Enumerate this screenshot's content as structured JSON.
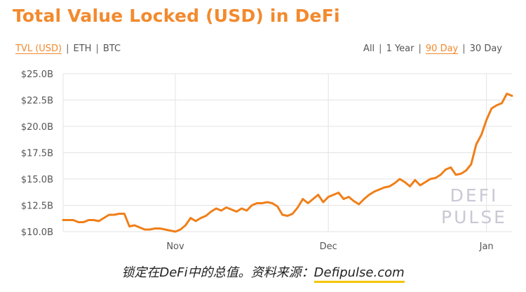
{
  "title": "Total Value Locked (USD) in DeFi",
  "metric_tabs": [
    {
      "label": "TVL (USD)",
      "active": true
    },
    {
      "label": "ETH",
      "active": false
    },
    {
      "label": "BTC",
      "active": false
    }
  ],
  "range_tabs": [
    {
      "label": "All",
      "active": false
    },
    {
      "label": "1 Year",
      "active": false
    },
    {
      "label": "90 Day",
      "active": true
    },
    {
      "label": "30 Day",
      "active": false
    }
  ],
  "separator": "|",
  "watermark": [
    "DEFI",
    "PULSE"
  ],
  "caption": {
    "text": "锁定在DeFi中的总值。资料来源：",
    "source": "Defipulse.com"
  },
  "colors": {
    "accent": "#f28a2e",
    "line": "#f07f19",
    "grid": "#e3e3e3",
    "source_underline": "#f5c400"
  },
  "chart_data": {
    "type": "line",
    "title": "Total Value Locked (USD) in DeFi",
    "xlabel": "",
    "ylabel": "",
    "ylim": [
      10,
      25
    ],
    "y_ticks": [
      10,
      12.5,
      15,
      17.5,
      20,
      22.5,
      25
    ],
    "y_tick_labels": [
      "$10.0B",
      "$12.5B",
      "$15.0B",
      "$17.5B",
      "$20.0B",
      "$22.5B",
      "$25.0B"
    ],
    "x_ticks": [
      {
        "label": "Nov",
        "day": 22
      },
      {
        "label": "Dec",
        "day": 52
      },
      {
        "label": "Jan",
        "day": 83
      }
    ],
    "grid": true,
    "series": [
      {
        "values_billion_usd": [
          11.1,
          11.1,
          11.1,
          10.9,
          10.9,
          11.1,
          11.1,
          11.0,
          11.3,
          11.6,
          11.6,
          11.7,
          11.7,
          10.5,
          10.6,
          10.4,
          10.2,
          10.2,
          10.3,
          10.3,
          10.2,
          10.1,
          10.0,
          10.2,
          10.6,
          11.3,
          11.0,
          11.3,
          11.5,
          11.9,
          12.2,
          12.0,
          12.3,
          12.1,
          11.9,
          12.2,
          12.0,
          12.5,
          12.7,
          12.7,
          12.8,
          12.7,
          12.4,
          11.6,
          11.5,
          11.7,
          12.3,
          13.1,
          12.7,
          13.1,
          13.5,
          12.8,
          13.3,
          13.5,
          13.7,
          13.1,
          13.3,
          12.9,
          12.6,
          13.1,
          13.5,
          13.8,
          14.0,
          14.2,
          14.3,
          14.6,
          15.0,
          14.7,
          14.3,
          14.9,
          14.4,
          14.7,
          15.0,
          15.1,
          15.4,
          15.9,
          16.1,
          15.4,
          15.5,
          15.8,
          16.4,
          18.3,
          19.2,
          20.6,
          21.7,
          22.0,
          22.2,
          23.1,
          22.9
        ]
      }
    ]
  }
}
